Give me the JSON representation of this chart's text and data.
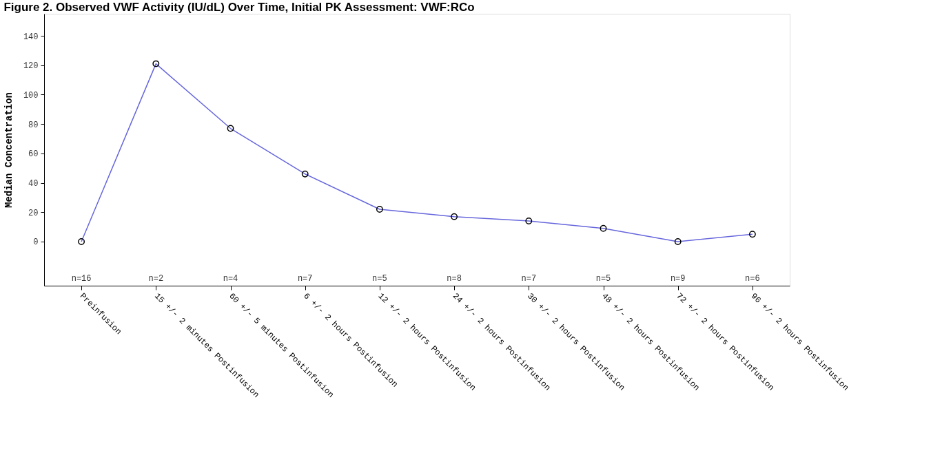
{
  "chart_data": {
    "type": "line",
    "title": "Figure 2. Observed VWF Activity (IU/dL) Over Time, Initial PK Assessment: VWF:RCo",
    "ylabel": "Median Concentration",
    "categories": [
      "Preinfusion",
      "15 +/- 2 minutes Postinfusion",
      "60 +/- 5 minutes Postinfusion",
      "6 +/- 2 hours Postinfusion",
      "12 +/- 2 hours Postinfusion",
      "24 +/- 2 hours Postinfusion",
      "30 +/- 2 hours Postinfusion",
      "48 +/- 2 hours Postinfusion",
      "72 +/- 2 hours Postinfusion",
      "96 +/- 2 hours Postinfusion"
    ],
    "series": [
      {
        "color": "#6666dd",
        "values": [
          0,
          121,
          77,
          46,
          22,
          17,
          14,
          9,
          0,
          5
        ]
      }
    ],
    "marker": "circle",
    "grid": false,
    "line_style": "solid",
    "ylim": [
      -30,
      155
    ],
    "yticks": [
      0,
      20,
      40,
      60,
      80,
      100,
      120,
      140
    ],
    "annotations": [
      "n=16",
      "n=2",
      "n=4",
      "n=7",
      "n=5",
      "n=8",
      "n=7",
      "n=5",
      "n=9",
      "n=6"
    ]
  }
}
